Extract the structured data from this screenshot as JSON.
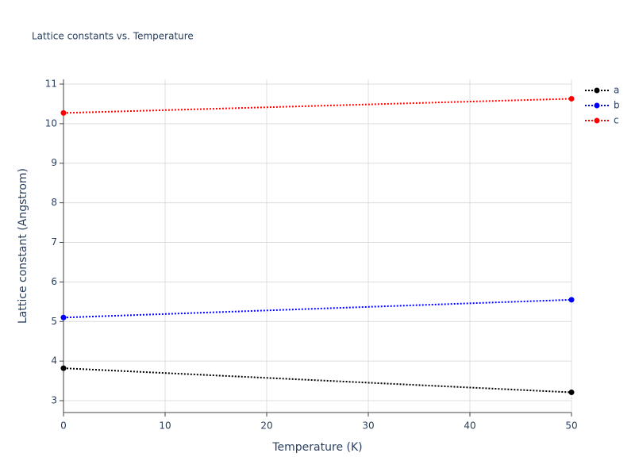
{
  "chart_data": {
    "type": "line",
    "title": "Lattice constants vs. Temperature",
    "x_label": "Temperature (K)",
    "y_label": "Lattice constant (Angstrom)",
    "x": [
      0,
      50
    ],
    "series": [
      {
        "name": "a",
        "color": "#000000",
        "values": [
          3.82,
          3.21
        ]
      },
      {
        "name": "b",
        "color": "#0000ff",
        "values": [
          5.1,
          5.55
        ]
      },
      {
        "name": "c",
        "color": "#ff0000",
        "values": [
          10.27,
          10.63
        ]
      }
    ],
    "xlim": [
      0,
      50
    ],
    "xticks": [
      0,
      10,
      20,
      30,
      40,
      50
    ],
    "ylim": [
      2.7,
      11.12
    ],
    "yticks": [
      3,
      4,
      5,
      6,
      7,
      8,
      9,
      10,
      11
    ],
    "grid": true,
    "line_style": "dotted",
    "legend": "right"
  }
}
